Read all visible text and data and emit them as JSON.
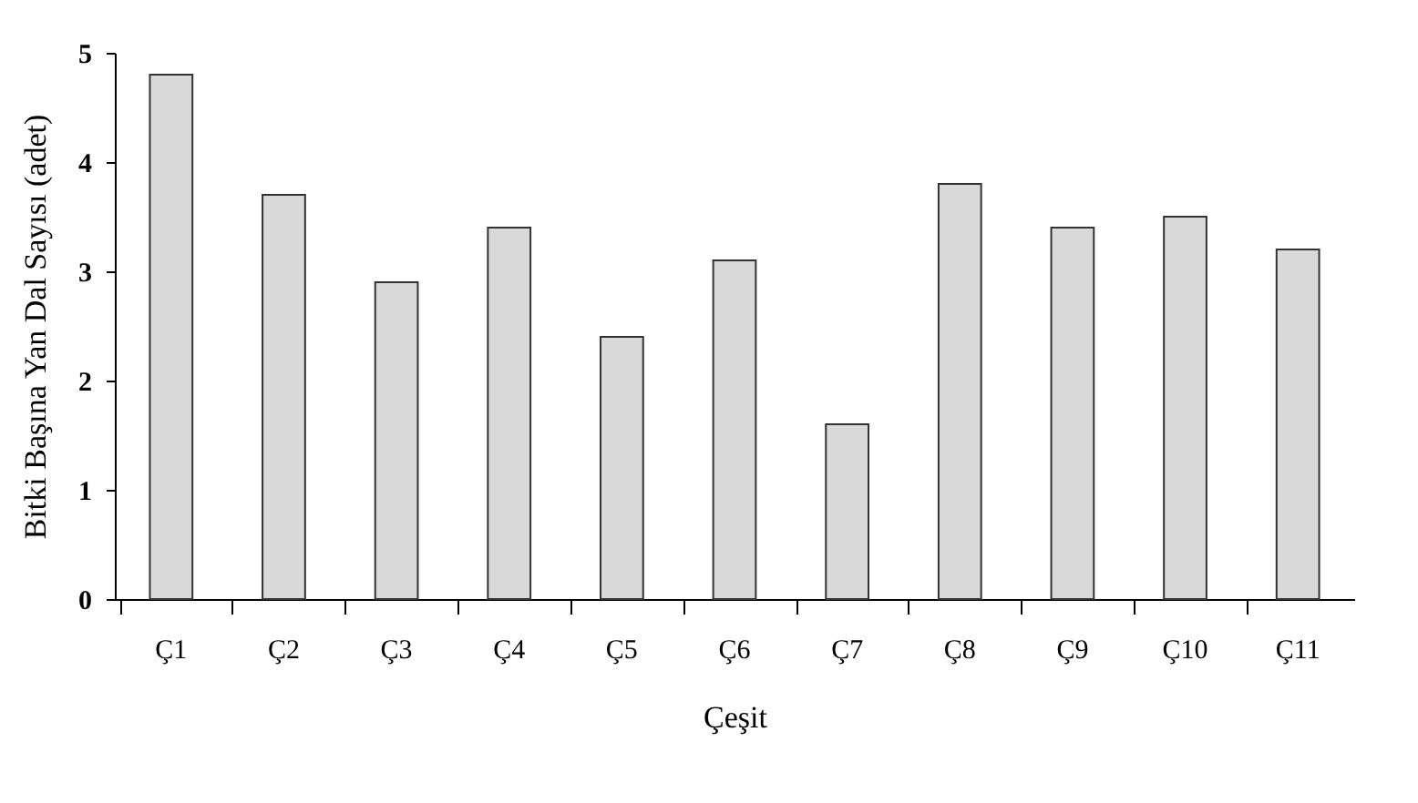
{
  "chart_data": {
    "type": "bar",
    "xlabel": "Çeşit",
    "ylabel": "Bitki Başına Yan Dal Sayısı (adet)",
    "categories": [
      "Ç1",
      "Ç2",
      "Ç3",
      "Ç4",
      "Ç5",
      "Ç6",
      "Ç7",
      "Ç8",
      "Ç9",
      "Ç10",
      "Ç11"
    ],
    "values": [
      4.8,
      3.7,
      2.9,
      3.4,
      2.4,
      3.1,
      1.6,
      3.8,
      3.4,
      3.5,
      3.2
    ],
    "color": "#d9d9d9",
    "ylim": [
      0,
      5
    ],
    "yticks": [
      0,
      1,
      2,
      3,
      4,
      5
    ],
    "grid": false
  }
}
